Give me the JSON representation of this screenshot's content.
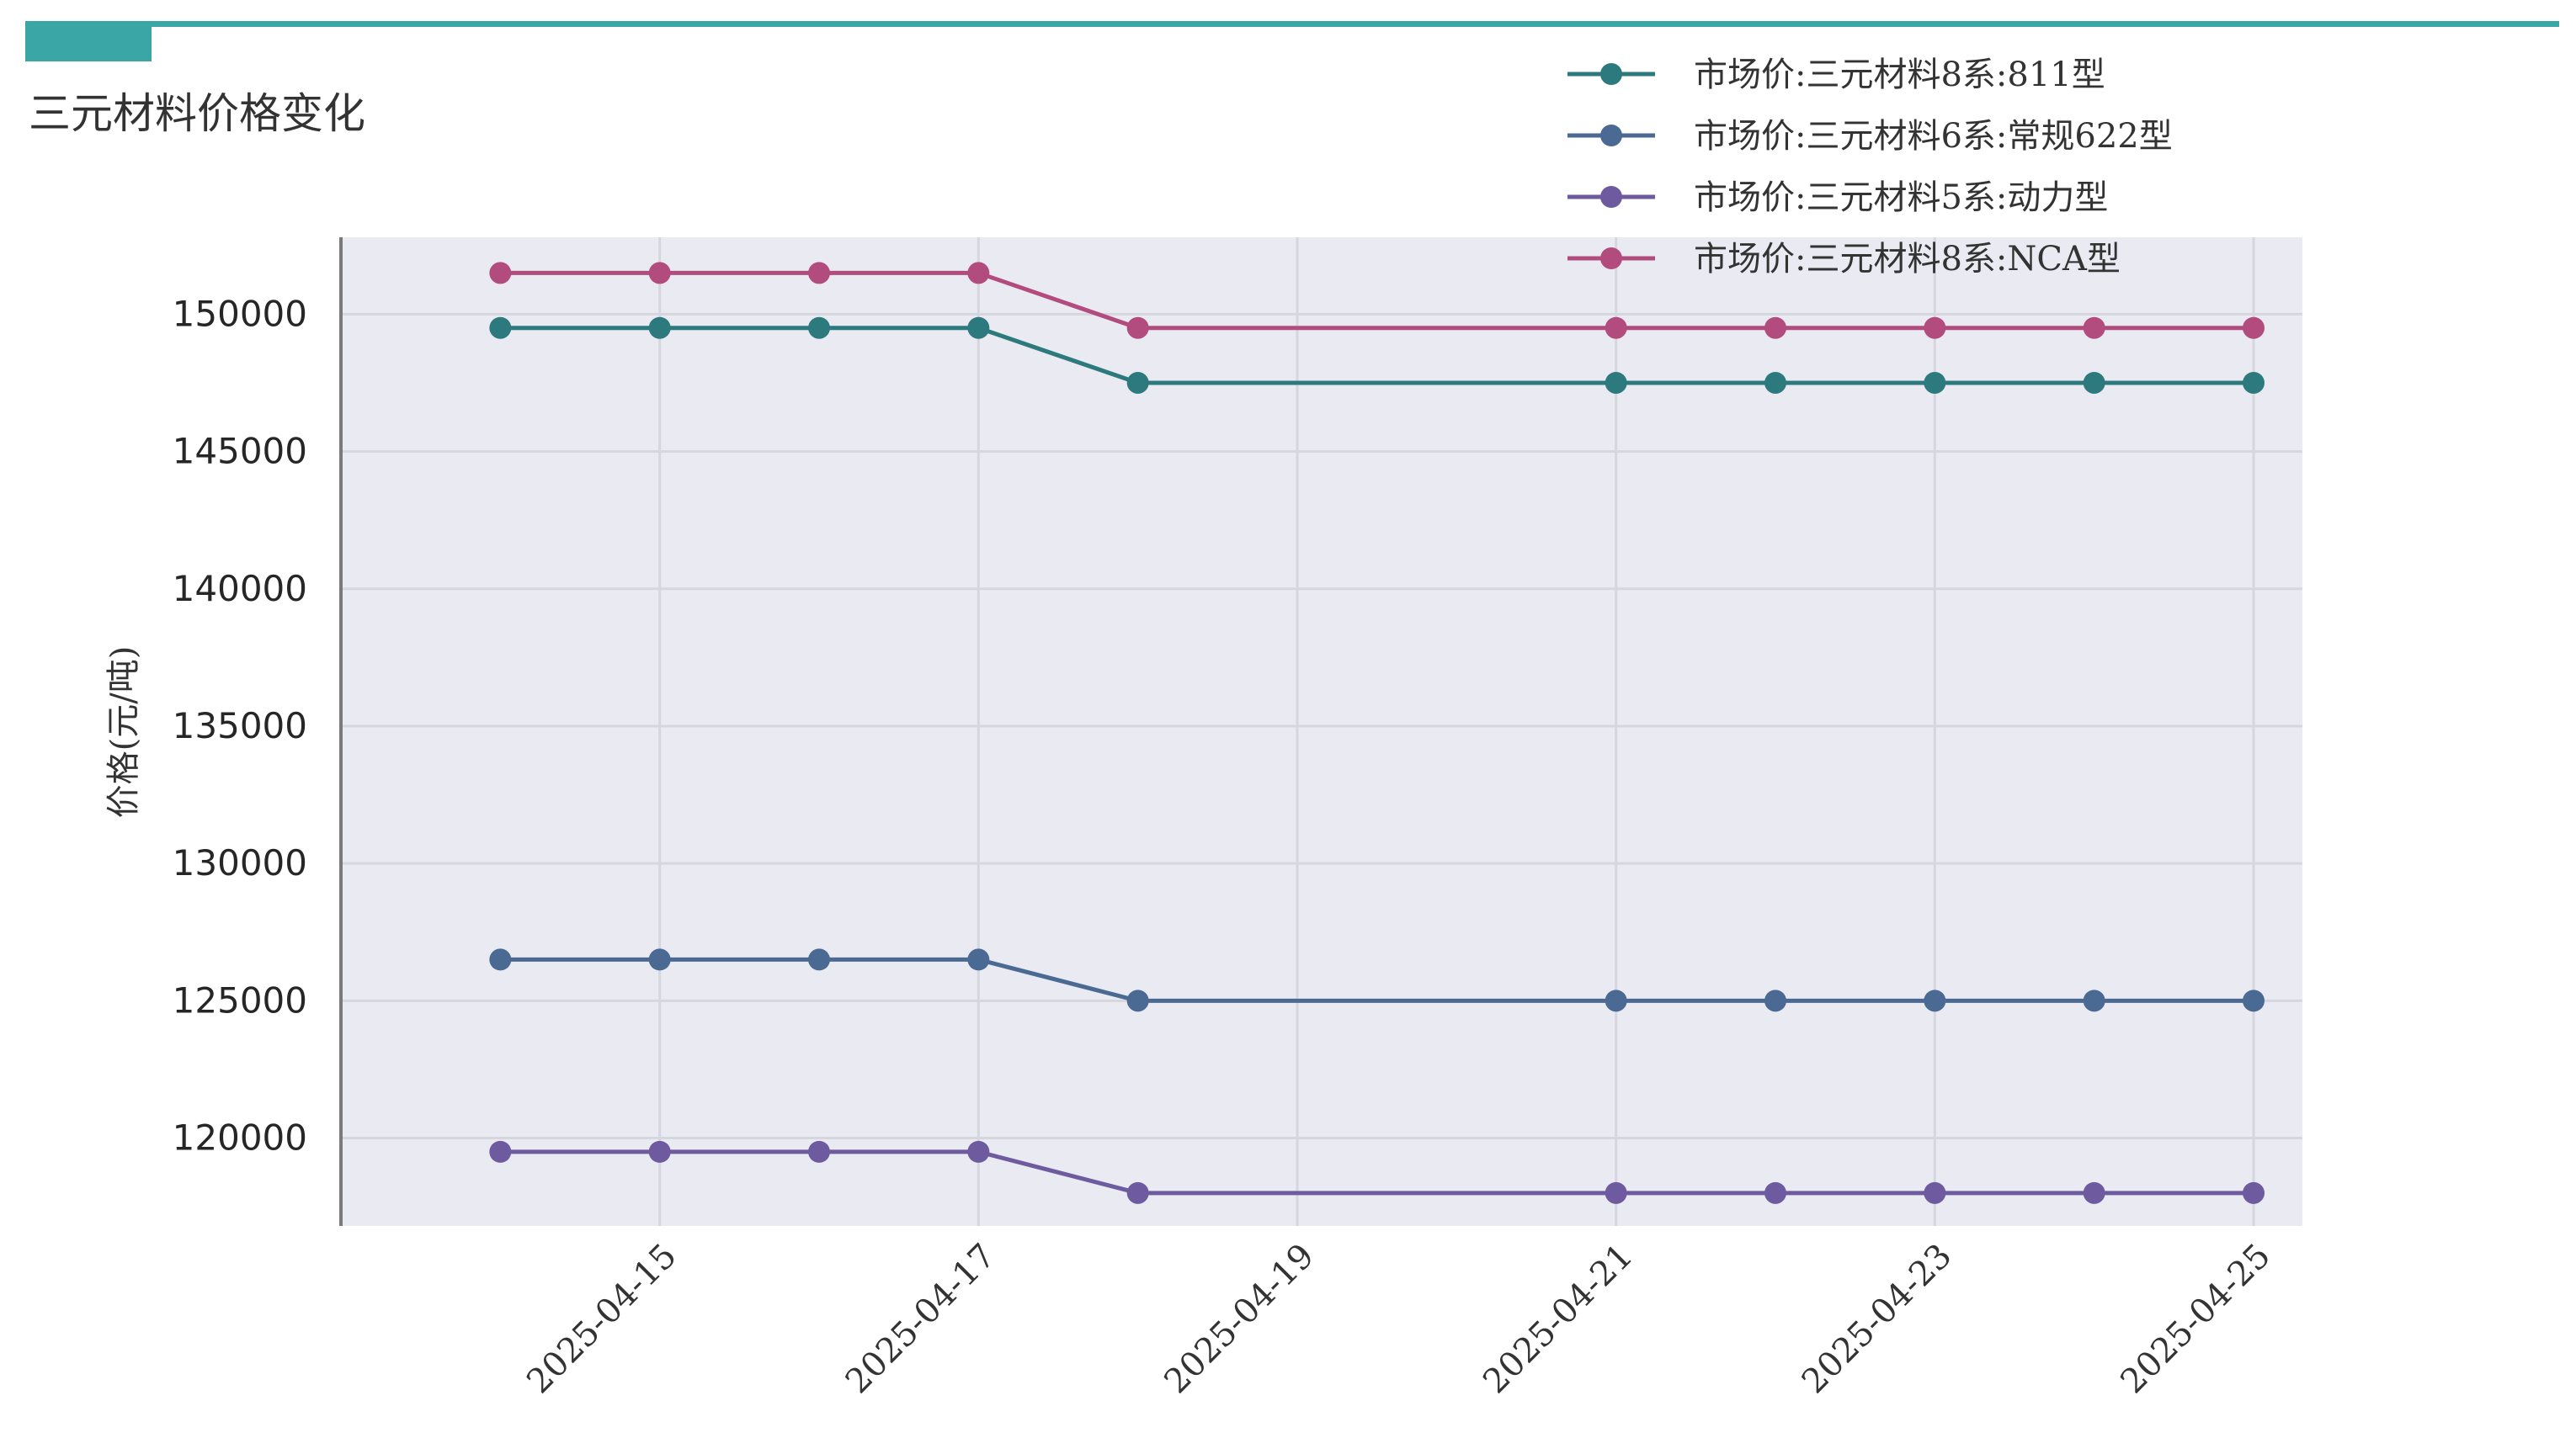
{
  "header": {
    "title": "三元材料价格变化",
    "accent_color": "#3aa6a6"
  },
  "chart_data": {
    "type": "line",
    "title": "三元材料价格变化",
    "xlabel": "",
    "ylabel": "价格(元/吨)",
    "x": [
      "2025-04-14",
      "2025-04-15",
      "2025-04-16",
      "2025-04-17",
      "2025-04-18",
      "2025-04-21",
      "2025-04-22",
      "2025-04-23",
      "2025-04-24",
      "2025-04-25"
    ],
    "x_ticks": [
      "2025-04-15",
      "2025-04-17",
      "2025-04-19",
      "2025-04-21",
      "2025-04-23",
      "2025-04-25"
    ],
    "xlim": [
      "2025-04-13",
      "2025-04-25"
    ],
    "ylim": [
      116800,
      152800
    ],
    "y_ticks": [
      120000,
      125000,
      130000,
      135000,
      140000,
      145000,
      150000
    ],
    "grid": true,
    "legend_position": "top-right",
    "plot_background": "#eaeaf2",
    "series": [
      {
        "name": "市场价:三元材料8系:811型",
        "color": "#2d7a7e",
        "values": [
          149500,
          149500,
          149500,
          149500,
          147500,
          147500,
          147500,
          147500,
          147500,
          147500
        ]
      },
      {
        "name": "市场价:三元材料6系:常规622型",
        "color": "#4b6a93",
        "values": [
          126500,
          126500,
          126500,
          126500,
          125000,
          125000,
          125000,
          125000,
          125000,
          125000
        ]
      },
      {
        "name": "市场价:三元材料5系:动力型",
        "color": "#6e5a9e",
        "values": [
          119500,
          119500,
          119500,
          119500,
          118000,
          118000,
          118000,
          118000,
          118000,
          118000
        ]
      },
      {
        "name": "市场价:三元材料8系:NCA型",
        "color": "#b34c7e",
        "values": [
          151500,
          151500,
          151500,
          151500,
          149500,
          149500,
          149500,
          149500,
          149500,
          149500
        ]
      }
    ]
  }
}
